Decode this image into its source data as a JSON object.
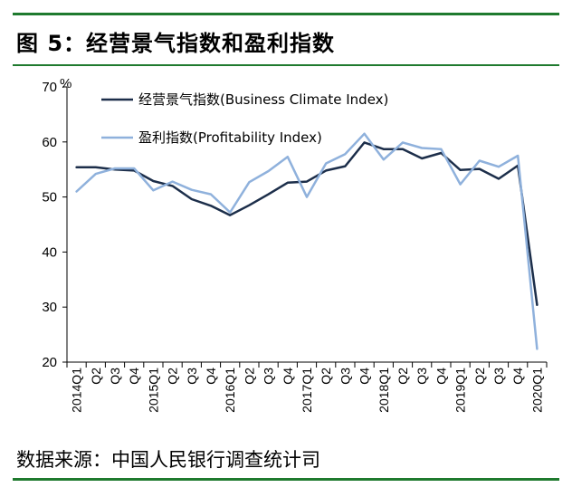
{
  "figure": {
    "title": "图 5：经营景气指数和盈利指数",
    "source": "数据来源：中国人民银行调查统计司"
  },
  "chart_data": {
    "type": "line",
    "title": "图 5：经营景气指数和盈利指数",
    "ylabel": "%",
    "xlabel": "",
    "ylim": [
      20,
      70
    ],
    "yticks": [
      20,
      30,
      40,
      50,
      60,
      70
    ],
    "grid": false,
    "legend_position": "top-left",
    "categories": [
      "2014Q1",
      "Q2",
      "Q3",
      "Q4",
      "2015Q1",
      "Q2",
      "Q3",
      "Q4",
      "2016Q1",
      "Q2",
      "Q3",
      "Q4",
      "2017Q1",
      "Q2",
      "Q3",
      "Q4",
      "2018Q1",
      "Q2",
      "Q3",
      "Q4",
      "2019Q1",
      "Q2",
      "Q3",
      "Q4",
      "2020Q1"
    ],
    "series": [
      {
        "name": "经营景气指数(Business Climate Index)",
        "color": "#1c2e4a",
        "values": [
          55.4,
          55.4,
          55.0,
          54.8,
          52.9,
          52.0,
          49.6,
          48.4,
          46.7,
          48.5,
          50.5,
          52.6,
          52.8,
          54.8,
          55.6,
          59.9,
          58.7,
          58.7,
          57.0,
          58.0,
          54.9,
          55.1,
          53.3,
          55.7,
          30.4
        ]
      },
      {
        "name": "盈利指数(Profitability Index)",
        "color": "#8fb1dc",
        "values": [
          51.0,
          54.2,
          55.2,
          55.2,
          51.2,
          52.8,
          51.3,
          50.5,
          47.2,
          52.7,
          54.7,
          57.3,
          50.0,
          56.1,
          57.8,
          61.5,
          56.8,
          59.9,
          58.9,
          58.7,
          52.3,
          56.6,
          55.5,
          57.5,
          22.4
        ]
      }
    ]
  }
}
